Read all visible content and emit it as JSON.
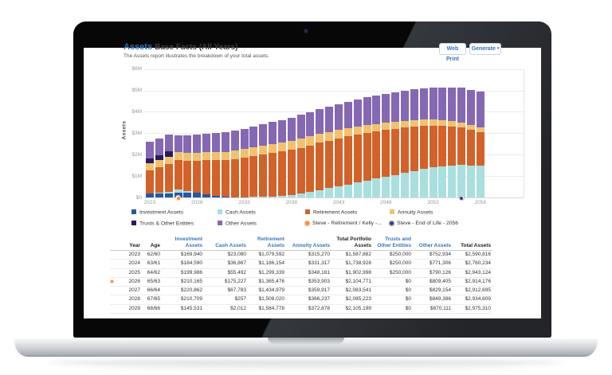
{
  "page": {
    "title_primary": "Assets",
    "title_secondary": "Base Facts (All Years)",
    "subtitle": "The Assets report illustrates the breakdown of your total assets.",
    "buttons": {
      "web_print": "Web Print",
      "generate": "Generate",
      "generate_caret": "▾"
    }
  },
  "colors": {
    "investment": "#2458a4",
    "cash": "#a9dfdf",
    "retirement": "#d2622a",
    "annuity": "#f2c170",
    "trusts": "#2c1a5e",
    "other": "#8568b4",
    "accent_blue": "#3a73b8"
  },
  "chart_data": {
    "type": "bar",
    "stacked": true,
    "ylabel": "Assets",
    "ylim": [
      0,
      6000000
    ],
    "grid": true,
    "y_ticks": [
      {
        "value": 0,
        "label": "$0"
      },
      {
        "value": 1000000,
        "label": "$1M"
      },
      {
        "value": 2000000,
        "label": "$2M"
      },
      {
        "value": 3000000,
        "label": "$3M"
      },
      {
        "value": 4000000,
        "label": "$4M"
      },
      {
        "value": 5000000,
        "label": "$5M"
      },
      {
        "value": 6000000,
        "label": "$6M"
      }
    ],
    "x_tick_years": [
      2023,
      2028,
      2033,
      2038,
      2043,
      2048,
      2053,
      2058
    ],
    "categories": [
      2023,
      2024,
      2025,
      2026,
      2027,
      2028,
      2029,
      2030,
      2031,
      2032,
      2033,
      2034,
      2035,
      2036,
      2037,
      2038,
      2039,
      2040,
      2041,
      2042,
      2043,
      2044,
      2045,
      2046,
      2047,
      2048,
      2049,
      2050,
      2051,
      2052,
      2053,
      2054,
      2055,
      2056,
      2057,
      2058
    ],
    "series": [
      {
        "name": "Investment Assets",
        "color": "#2458a4",
        "values": [
          169940,
          184590,
          199986,
          210165,
          220862,
          210709,
          145531,
          85000,
          30000,
          0,
          0,
          0,
          0,
          0,
          0,
          0,
          0,
          0,
          0,
          0,
          0,
          0,
          0,
          0,
          0,
          0,
          0,
          0,
          0,
          0,
          0,
          0,
          0,
          0,
          0,
          0
        ]
      },
      {
        "name": "Cash Assets",
        "color": "#a9dfdf",
        "values": [
          23080,
          36867,
          55492,
          175227,
          67783,
          257,
          2012,
          5000,
          8000,
          12000,
          18000,
          25000,
          35000,
          50000,
          70000,
          100000,
          170000,
          250000,
          340000,
          430000,
          520000,
          610000,
          700000,
          790000,
          880000,
          970000,
          1060000,
          1150000,
          1240000,
          1330000,
          1400000,
          1450000,
          1490000,
          1520000,
          1500000,
          1480000
        ]
      },
      {
        "name": "Retirement Assets",
        "color": "#d2622a",
        "values": [
          1079592,
          1186154,
          1299339,
          1365476,
          1434979,
          1508020,
          1584778,
          1650000,
          1715000,
          1780000,
          1845000,
          1910000,
          1970000,
          2025000,
          2075000,
          2120000,
          2155000,
          2185000,
          2210000,
          2225000,
          2235000,
          2240000,
          2235000,
          2225000,
          2210000,
          2185000,
          2155000,
          2115000,
          2070000,
          2015000,
          1955000,
          1890000,
          1820000,
          1745000,
          1665000,
          1585000
        ]
      },
      {
        "name": "Annuity Assets",
        "color": "#f2c170",
        "values": [
          315270,
          331317,
          348181,
          353903,
          359917,
          366237,
          372878,
          379000,
          385000,
          391000,
          397000,
          403000,
          408000,
          413000,
          417000,
          420000,
          422000,
          422000,
          415000,
          405000,
          393000,
          381000,
          369000,
          357000,
          345000,
          333000,
          321000,
          309000,
          297000,
          285000,
          273000,
          261000,
          250000,
          240000,
          232000,
          225000
        ]
      },
      {
        "name": "Trusts & Other Entities",
        "color": "#2c1a5e",
        "values": [
          250000,
          250000,
          250000,
          0,
          0,
          0,
          0,
          0,
          0,
          0,
          0,
          0,
          0,
          0,
          0,
          0,
          0,
          0,
          0,
          0,
          0,
          0,
          0,
          0,
          0,
          0,
          0,
          0,
          0,
          0,
          0,
          0,
          0,
          0,
          0,
          0
        ]
      },
      {
        "name": "Other Assets",
        "color": "#8568b4",
        "values": [
          752934,
          771306,
          790126,
          809405,
          829154,
          849386,
          870111,
          891000,
          913000,
          935000,
          958000,
          981000,
          1005000,
          1029000,
          1054000,
          1079000,
          1105000,
          1131000,
          1158000,
          1185000,
          1213000,
          1241000,
          1270000,
          1299000,
          1329000,
          1359000,
          1390000,
          1421000,
          1453000,
          1485000,
          1518000,
          1551000,
          1585000,
          1619000,
          1640000,
          1660000
        ]
      }
    ],
    "markers": [
      {
        "year": 2026,
        "kind": "event-orange",
        "label": "Steve - Retirement / Kelly -..."
      },
      {
        "year": 2056,
        "kind": "event-dark",
        "label": "Steve - End of Life - 2056"
      }
    ],
    "legend": [
      {
        "swatch": "square",
        "color": "#2458a4",
        "label": "Investment Assets"
      },
      {
        "swatch": "square",
        "color": "#a9dfdf",
        "label": "Cash Assets"
      },
      {
        "swatch": "square",
        "color": "#d2622a",
        "label": "Retirement Assets"
      },
      {
        "swatch": "square",
        "color": "#f2c170",
        "label": "Annuity Assets"
      },
      {
        "swatch": "square",
        "color": "#2c1a5e",
        "label": "Trusts & Other Entities"
      },
      {
        "swatch": "square",
        "color": "#8568b4",
        "label": "Other Assets"
      },
      {
        "swatch": "circle",
        "color": "#ee8f3f",
        "ring": "#f6cfa4",
        "label": "Steve - Retirement / Kelly -..."
      },
      {
        "swatch": "circle",
        "color": "#3b3f75",
        "ring": "#bdbdd6",
        "label": "Steve - End of Life - 2056"
      }
    ]
  },
  "table": {
    "columns": [
      {
        "label": "",
        "style": "plain"
      },
      {
        "label": "Year",
        "style": "plain"
      },
      {
        "label": "Age",
        "style": "plain"
      },
      {
        "label": "Investment Assets",
        "style": "link"
      },
      {
        "label": "Cash Assets",
        "style": "link"
      },
      {
        "label": "Retirement Assets",
        "style": "link"
      },
      {
        "label": "Annuity Assets",
        "style": "link"
      },
      {
        "label": "Total Portfolio Assets",
        "style": "plain"
      },
      {
        "label": "Trusts and Other Entities",
        "style": "link"
      },
      {
        "label": "Other Assets",
        "style": "link"
      },
      {
        "label": "Total Assets",
        "style": "plain"
      }
    ],
    "rows": [
      {
        "marker": false,
        "cells": [
          "2023",
          "62/60",
          "$169,940",
          "$23,080",
          "$1,079,592",
          "$315,270",
          "$1,587,882",
          "$250,000",
          "$752,934",
          "$2,590,816"
        ]
      },
      {
        "marker": false,
        "cells": [
          "2024",
          "63/61",
          "$184,590",
          "$36,867",
          "$1,186,154",
          "$331,317",
          "$1,738,928",
          "$250,000",
          "$771,306",
          "$2,760,234"
        ]
      },
      {
        "marker": false,
        "cells": [
          "2025",
          "64/62",
          "$199,986",
          "$55,492",
          "$1,299,339",
          "$348,181",
          "$1,902,998",
          "$250,000",
          "$790,126",
          "$2,943,124"
        ]
      },
      {
        "marker": true,
        "cells": [
          "2026",
          "65/63",
          "$210,165",
          "$175,227",
          "$1,365,476",
          "$353,903",
          "$2,104,771",
          "$0",
          "$809,405",
          "$2,914,176"
        ]
      },
      {
        "marker": false,
        "cells": [
          "2027",
          "66/64",
          "$220,862",
          "$67,783",
          "$1,434,979",
          "$359,917",
          "$2,083,541",
          "$0",
          "$829,154",
          "$2,912,695"
        ]
      },
      {
        "marker": false,
        "cells": [
          "2028",
          "67/65",
          "$210,709",
          "$257",
          "$1,508,020",
          "$366,237",
          "$2,085,223",
          "$0",
          "$849,386",
          "$2,934,609"
        ]
      },
      {
        "marker": false,
        "cells": [
          "2029",
          "68/66",
          "$145,531",
          "$2,012",
          "$1,584,778",
          "$372,878",
          "$2,105,199",
          "$0",
          "$870,111",
          "$2,975,310"
        ]
      }
    ]
  }
}
